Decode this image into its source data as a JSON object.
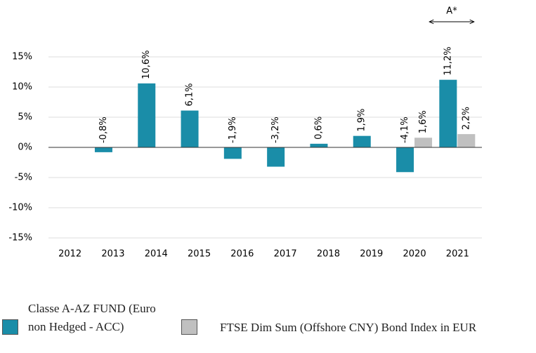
{
  "chart_data": {
    "type": "bar",
    "categories": [
      "2012",
      "2013",
      "2014",
      "2015",
      "2016",
      "2017",
      "2018",
      "2019",
      "2020",
      "2021"
    ],
    "series": [
      {
        "name": "Classe A-AZ FUND (Euro non Hedged - ACC)",
        "color": "#1a8da8",
        "values": [
          null,
          -0.8,
          10.6,
          6.1,
          -1.9,
          -3.2,
          0.6,
          1.9,
          -4.1,
          11.2
        ],
        "value_labels": [
          null,
          "-0,8%",
          "10,6%",
          "6,1%",
          "-1,9%",
          "-3,2%",
          "0,6%",
          "1,9%",
          "-4,1%",
          "11,2%"
        ]
      },
      {
        "name": "FTSE Dim Sum (Offshore CNY) Bond Index in EUR",
        "color": "#c0c0c0",
        "values": [
          null,
          null,
          null,
          null,
          null,
          null,
          null,
          null,
          1.6,
          2.2
        ],
        "value_labels": [
          null,
          null,
          null,
          null,
          null,
          null,
          null,
          null,
          "1,6%",
          "2,2%"
        ]
      }
    ],
    "ylim": [
      -15,
      15
    ],
    "yticks": [
      {
        "value": -15,
        "label": "-15%"
      },
      {
        "value": -10,
        "label": "-10%"
      },
      {
        "value": -5,
        "label": "-5%"
      },
      {
        "value": 0,
        "label": "0%"
      },
      {
        "value": 5,
        "label": "5%"
      },
      {
        "value": 10,
        "label": "10%"
      },
      {
        "value": 15,
        "label": "15%"
      }
    ],
    "grid": true,
    "annotation": "A*"
  }
}
